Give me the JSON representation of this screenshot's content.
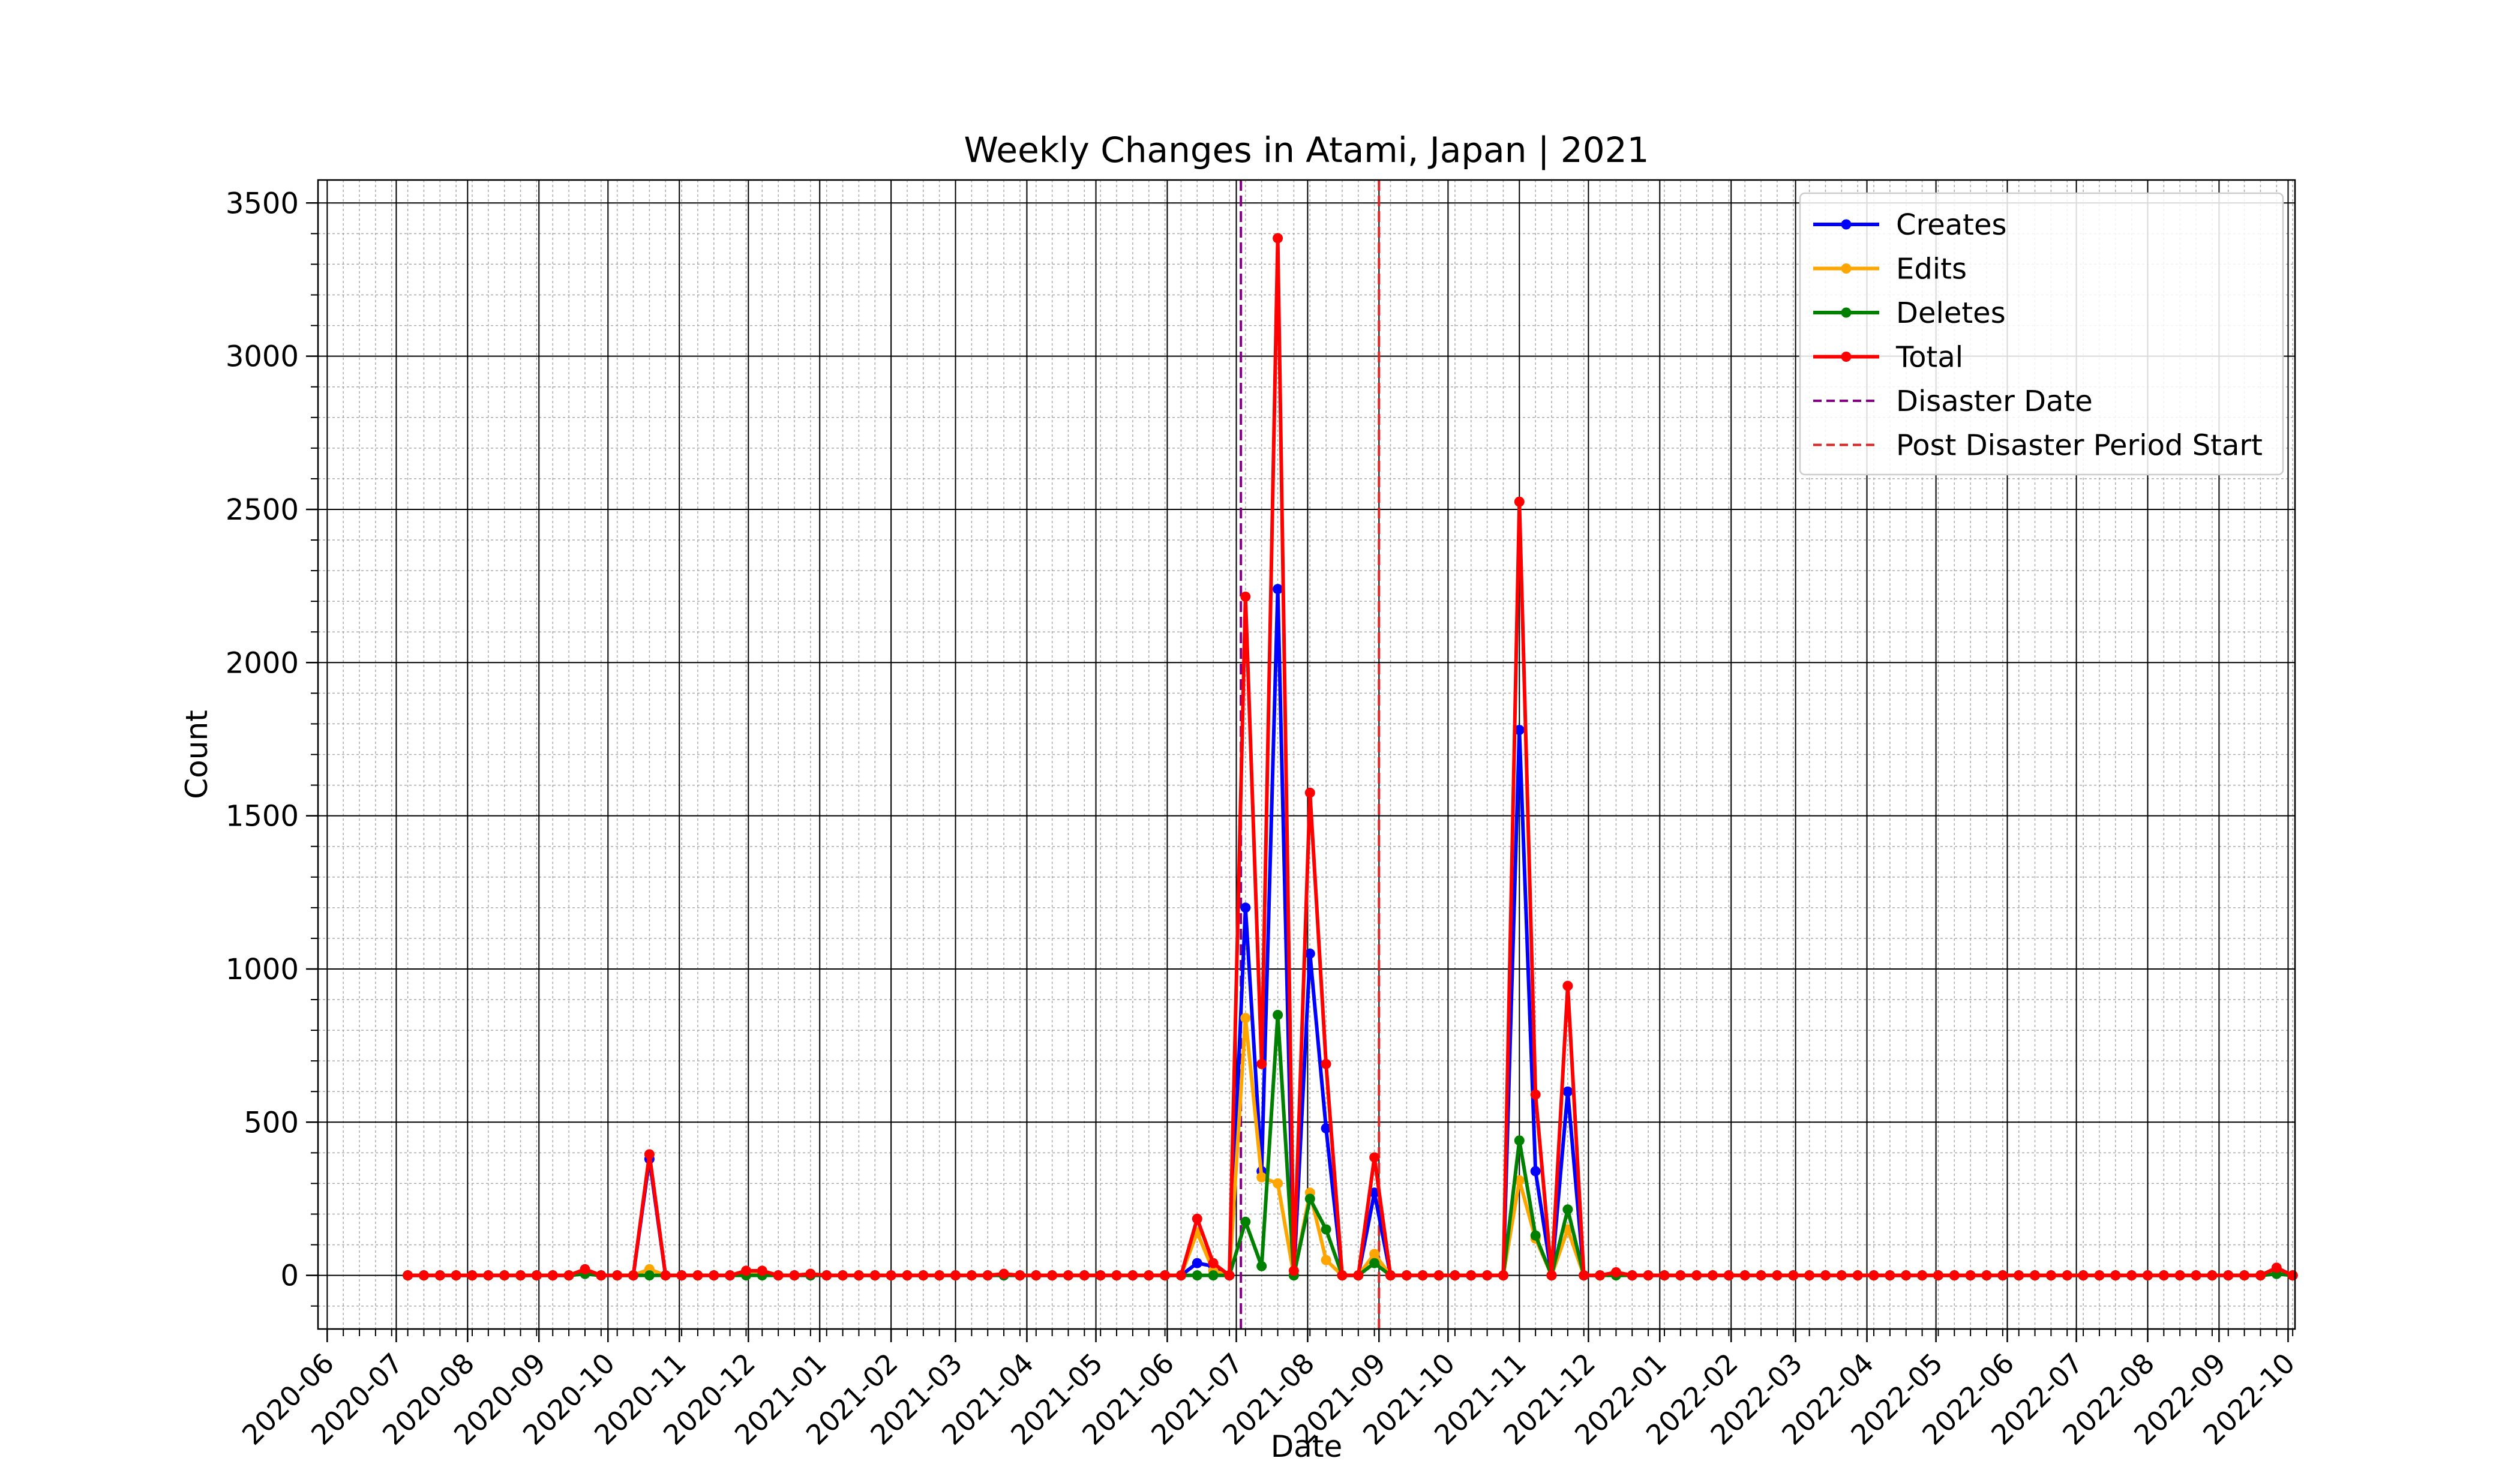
{
  "chart_data": {
    "type": "line",
    "title": "Weekly Changes in Atami, Japan | 2021",
    "xlabel": "Date",
    "ylabel": "Count",
    "ylim": [
      -175,
      3575
    ],
    "xlim": [
      "2020-05-28",
      "2022-10-04"
    ],
    "yticks": [
      0,
      500,
      1000,
      1500,
      2000,
      2500,
      3000,
      3500
    ],
    "xticks": [
      "2020-06",
      "2020-07",
      "2020-08",
      "2020-09",
      "2020-10",
      "2020-11",
      "2020-12",
      "2021-01",
      "2021-02",
      "2021-03",
      "2021-04",
      "2021-05",
      "2021-06",
      "2021-07",
      "2021-08",
      "2021-09",
      "2021-10",
      "2021-11",
      "2021-12",
      "2022-01",
      "2022-02",
      "2022-03",
      "2022-04",
      "2022-05",
      "2022-06",
      "2022-07",
      "2022-08",
      "2022-09",
      "2022-10"
    ],
    "x_start": "2020-07-06",
    "x_step_days": 7,
    "grid": true,
    "legend_position": "top-right",
    "series": [
      {
        "name": "Creates",
        "color": "#0000ff",
        "values": [
          0,
          0,
          0,
          0,
          0,
          0,
          0,
          0,
          0,
          0,
          0,
          5,
          0,
          0,
          0,
          380,
          0,
          0,
          0,
          0,
          0,
          5,
          5,
          0,
          0,
          0,
          0,
          0,
          0,
          0,
          0,
          0,
          0,
          0,
          0,
          0,
          0,
          0,
          0,
          0,
          0,
          0,
          0,
          0,
          0,
          0,
          0,
          0,
          0,
          40,
          30,
          0,
          1200,
          340,
          2240,
          0,
          1050,
          480,
          0,
          0,
          270,
          0,
          0,
          0,
          0,
          0,
          0,
          0,
          0,
          1780,
          340,
          0,
          600,
          0,
          0,
          5,
          0,
          0,
          0,
          0,
          0,
          0,
          0,
          0,
          0,
          0,
          0,
          0,
          0,
          0,
          0,
          0,
          0,
          0,
          0,
          0,
          0,
          0,
          0,
          0,
          0,
          0,
          0,
          0,
          0,
          0,
          0,
          0,
          0,
          0,
          0,
          0,
          0,
          0,
          0,
          0,
          5,
          0
        ]
      },
      {
        "name": "Edits",
        "color": "#ffa500",
        "values": [
          0,
          0,
          0,
          0,
          0,
          0,
          0,
          0,
          0,
          0,
          0,
          15,
          0,
          0,
          0,
          20,
          0,
          0,
          0,
          0,
          0,
          10,
          10,
          0,
          0,
          5,
          0,
          0,
          0,
          0,
          0,
          0,
          0,
          0,
          0,
          0,
          0,
          5,
          0,
          0,
          0,
          0,
          0,
          0,
          0,
          0,
          0,
          0,
          0,
          140,
          15,
          0,
          840,
          320,
          300,
          0,
          270,
          50,
          0,
          0,
          70,
          0,
          0,
          0,
          0,
          0,
          0,
          0,
          0,
          310,
          120,
          0,
          150,
          0,
          0,
          5,
          0,
          0,
          0,
          0,
          0,
          0,
          0,
          0,
          0,
          0,
          0,
          0,
          0,
          0,
          0,
          0,
          0,
          0,
          0,
          0,
          0,
          0,
          0,
          0,
          0,
          0,
          0,
          0,
          0,
          0,
          0,
          0,
          0,
          0,
          0,
          0,
          0,
          0,
          0,
          0,
          20,
          0
        ]
      },
      {
        "name": "Deletes",
        "color": "#008000",
        "values": [
          0,
          0,
          0,
          0,
          0,
          0,
          0,
          0,
          0,
          0,
          0,
          5,
          0,
          0,
          0,
          0,
          0,
          0,
          0,
          0,
          0,
          0,
          0,
          0,
          0,
          0,
          0,
          0,
          0,
          0,
          0,
          0,
          0,
          0,
          0,
          0,
          0,
          0,
          0,
          0,
          0,
          0,
          0,
          0,
          0,
          0,
          0,
          0,
          0,
          0,
          0,
          0,
          175,
          30,
          850,
          0,
          250,
          150,
          0,
          0,
          40,
          0,
          0,
          0,
          0,
          0,
          0,
          0,
          0,
          440,
          130,
          0,
          215,
          0,
          0,
          0,
          0,
          0,
          0,
          0,
          0,
          0,
          0,
          0,
          0,
          0,
          0,
          0,
          0,
          0,
          0,
          0,
          0,
          0,
          0,
          0,
          0,
          0,
          0,
          0,
          0,
          0,
          0,
          0,
          0,
          0,
          0,
          0,
          0,
          0,
          0,
          0,
          0,
          0,
          0,
          0,
          5,
          0
        ]
      },
      {
        "name": "Total",
        "color": "#ff0000",
        "values": [
          0,
          0,
          0,
          0,
          0,
          0,
          0,
          0,
          0,
          0,
          0,
          20,
          0,
          0,
          0,
          395,
          0,
          0,
          0,
          0,
          0,
          15,
          15,
          0,
          0,
          5,
          0,
          0,
          0,
          0,
          0,
          0,
          0,
          0,
          0,
          0,
          0,
          5,
          0,
          0,
          0,
          0,
          0,
          0,
          0,
          0,
          0,
          0,
          0,
          185,
          40,
          0,
          2215,
          690,
          3385,
          15,
          1575,
          690,
          0,
          0,
          385,
          0,
          0,
          0,
          0,
          0,
          0,
          0,
          0,
          2525,
          590,
          0,
          945,
          0,
          0,
          10,
          0,
          0,
          0,
          0,
          0,
          0,
          0,
          0,
          0,
          0,
          0,
          0,
          0,
          0,
          0,
          0,
          0,
          0,
          0,
          0,
          0,
          0,
          0,
          0,
          0,
          0,
          0,
          0,
          0,
          0,
          0,
          0,
          0,
          0,
          0,
          0,
          0,
          0,
          0,
          0,
          25,
          0
        ]
      }
    ],
    "vlines": [
      {
        "name": "Disaster Date",
        "date": "2021-07-03",
        "color": "#800080",
        "style": "dashed"
      },
      {
        "name": "Post Disaster Period Start",
        "date": "2021-09-01",
        "color": "#d62728",
        "style": "dashed"
      }
    ]
  }
}
